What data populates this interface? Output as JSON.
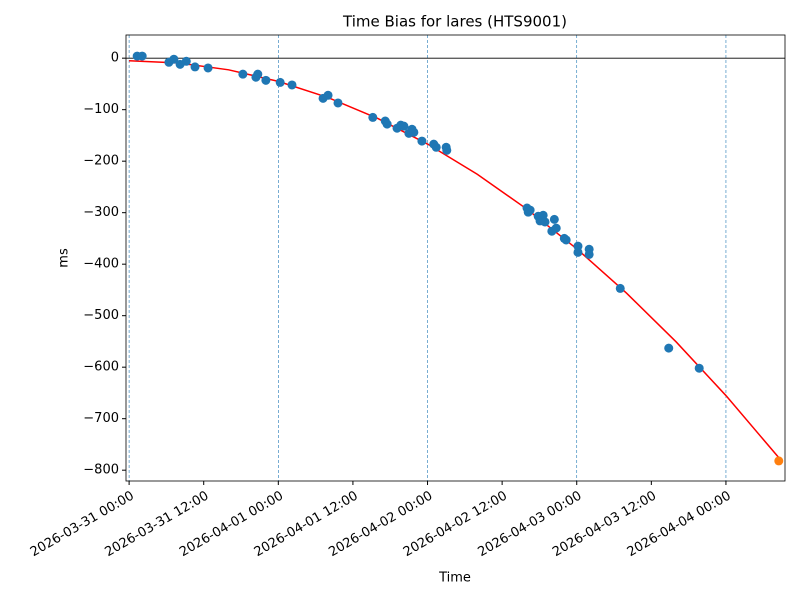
{
  "chart_data": {
    "type": "scatter",
    "title": "Time Bias for lares (HTS9001)",
    "x_label": "Time",
    "y_label": "ms",
    "xlim": [
      "2026-03-30 23:30",
      "2026-04-04 09:30"
    ],
    "ylim": [
      45,
      -821
    ],
    "xticks": [
      "2026-03-31 00:00",
      "2026-03-31 12:00",
      "2026-04-01 00:00",
      "2026-04-01 12:00",
      "2026-04-02 00:00",
      "2026-04-02 12:00",
      "2026-04-03 00:00",
      "2026-04-03 12:00",
      "2026-04-04 00:00"
    ],
    "yticks": [
      0,
      {
        "value": -100,
        "label": "−100"
      },
      {
        "value": -200,
        "label": "−200"
      },
      {
        "value": -300,
        "label": "−300"
      },
      {
        "value": -400,
        "label": "−400"
      },
      {
        "value": -500,
        "label": "−500"
      },
      {
        "value": -600,
        "label": "−600"
      },
      {
        "value": -700,
        "label": "−700"
      },
      {
        "value": -800,
        "label": "−800"
      }
    ],
    "vlines": [
      "2026-03-31 00:00",
      "2026-04-01 00:00",
      "2026-04-02 00:00",
      "2026-04-03 00:00",
      "2026-04-04 00:00"
    ],
    "vline_color": "#1f77b4",
    "hline": 0,
    "series": [
      {
        "kind": "line",
        "color": "#ff0000",
        "x": [
          "2026-03-31 00:00",
          "2026-03-31 08:00",
          "2026-03-31 16:00",
          "2026-04-01 00:00",
          "2026-04-01 08:00",
          "2026-04-01 16:00",
          "2026-04-02 00:00",
          "2026-04-02 08:00",
          "2026-04-02 16:00",
          "2026-04-03 00:00",
          "2026-04-03 08:00",
          "2026-04-03 16:00",
          "2026-04-04 00:00",
          "2026-04-04 08:30"
        ],
        "values": [
          -5,
          -9.3,
          -22.6,
          -45,
          -76.5,
          -117.1,
          -166.7,
          -225.4,
          -293.2,
          -370.1,
          -456.1,
          -551,
          -655.1,
          -775.7
        ]
      },
      {
        "kind": "scatter",
        "color": "#1f77b4",
        "x": [
          "2026-03-31 01:18",
          "2026-03-31 02:06",
          "2026-03-31 06:24",
          "2026-03-31 07:12",
          "2026-03-31 08:12",
          "2026-03-31 09:12",
          "2026-03-31 10:36",
          "2026-03-31 12:42",
          "2026-03-31 18:18",
          "2026-03-31 20:24",
          "2026-03-31 20:42",
          "2026-03-31 22:00",
          "2026-04-01 00:18",
          "2026-04-01 02:12",
          "2026-04-01 07:12",
          "2026-04-01 08:00",
          "2026-04-01 09:36",
          "2026-04-01 15:12",
          "2026-04-01 17:12",
          "2026-04-01 17:30",
          "2026-04-01 19:06",
          "2026-04-01 19:42",
          "2026-04-01 20:12",
          "2026-04-01 21:00",
          "2026-04-01 21:30",
          "2026-04-01 21:48",
          "2026-04-01 23:06",
          "2026-04-02 01:00",
          "2026-04-02 01:24",
          "2026-04-02 03:00",
          "2026-04-02 03:06",
          "2026-04-02 16:00",
          "2026-04-02 16:12",
          "2026-04-02 16:30",
          "2026-04-02 17:48",
          "2026-04-02 18:06",
          "2026-04-02 18:36",
          "2026-04-02 18:54",
          "2026-04-02 20:00",
          "2026-04-02 20:24",
          "2026-04-02 20:42",
          "2026-04-02 22:00",
          "2026-04-02 22:18",
          "2026-04-03 00:12",
          "2026-04-03 00:12",
          "2026-04-03 02:00",
          "2026-04-03 02:00",
          "2026-04-03 07:00",
          "2026-04-03 14:48",
          "2026-04-03 19:42"
        ],
        "values": [
          4,
          4,
          -8,
          -2,
          -12,
          -6,
          -17,
          -19,
          -31,
          -37,
          -31,
          -43,
          -47,
          -52,
          -78,
          -72,
          -87,
          -115,
          -122,
          -128,
          -136,
          -130,
          -132,
          -146,
          -138,
          -144,
          -161,
          -167,
          -173,
          -173,
          -179,
          -291,
          -299,
          -295,
          -307,
          -316,
          -305,
          -318,
          -336,
          -313,
          -330,
          -350,
          -353,
          -365,
          -377,
          -371,
          -381,
          -447,
          -563,
          -602
        ]
      },
      {
        "kind": "scatter",
        "color": "#ff7f0e",
        "x": [
          "2026-04-04 08:30"
        ],
        "values": [
          -782
        ]
      }
    ]
  }
}
